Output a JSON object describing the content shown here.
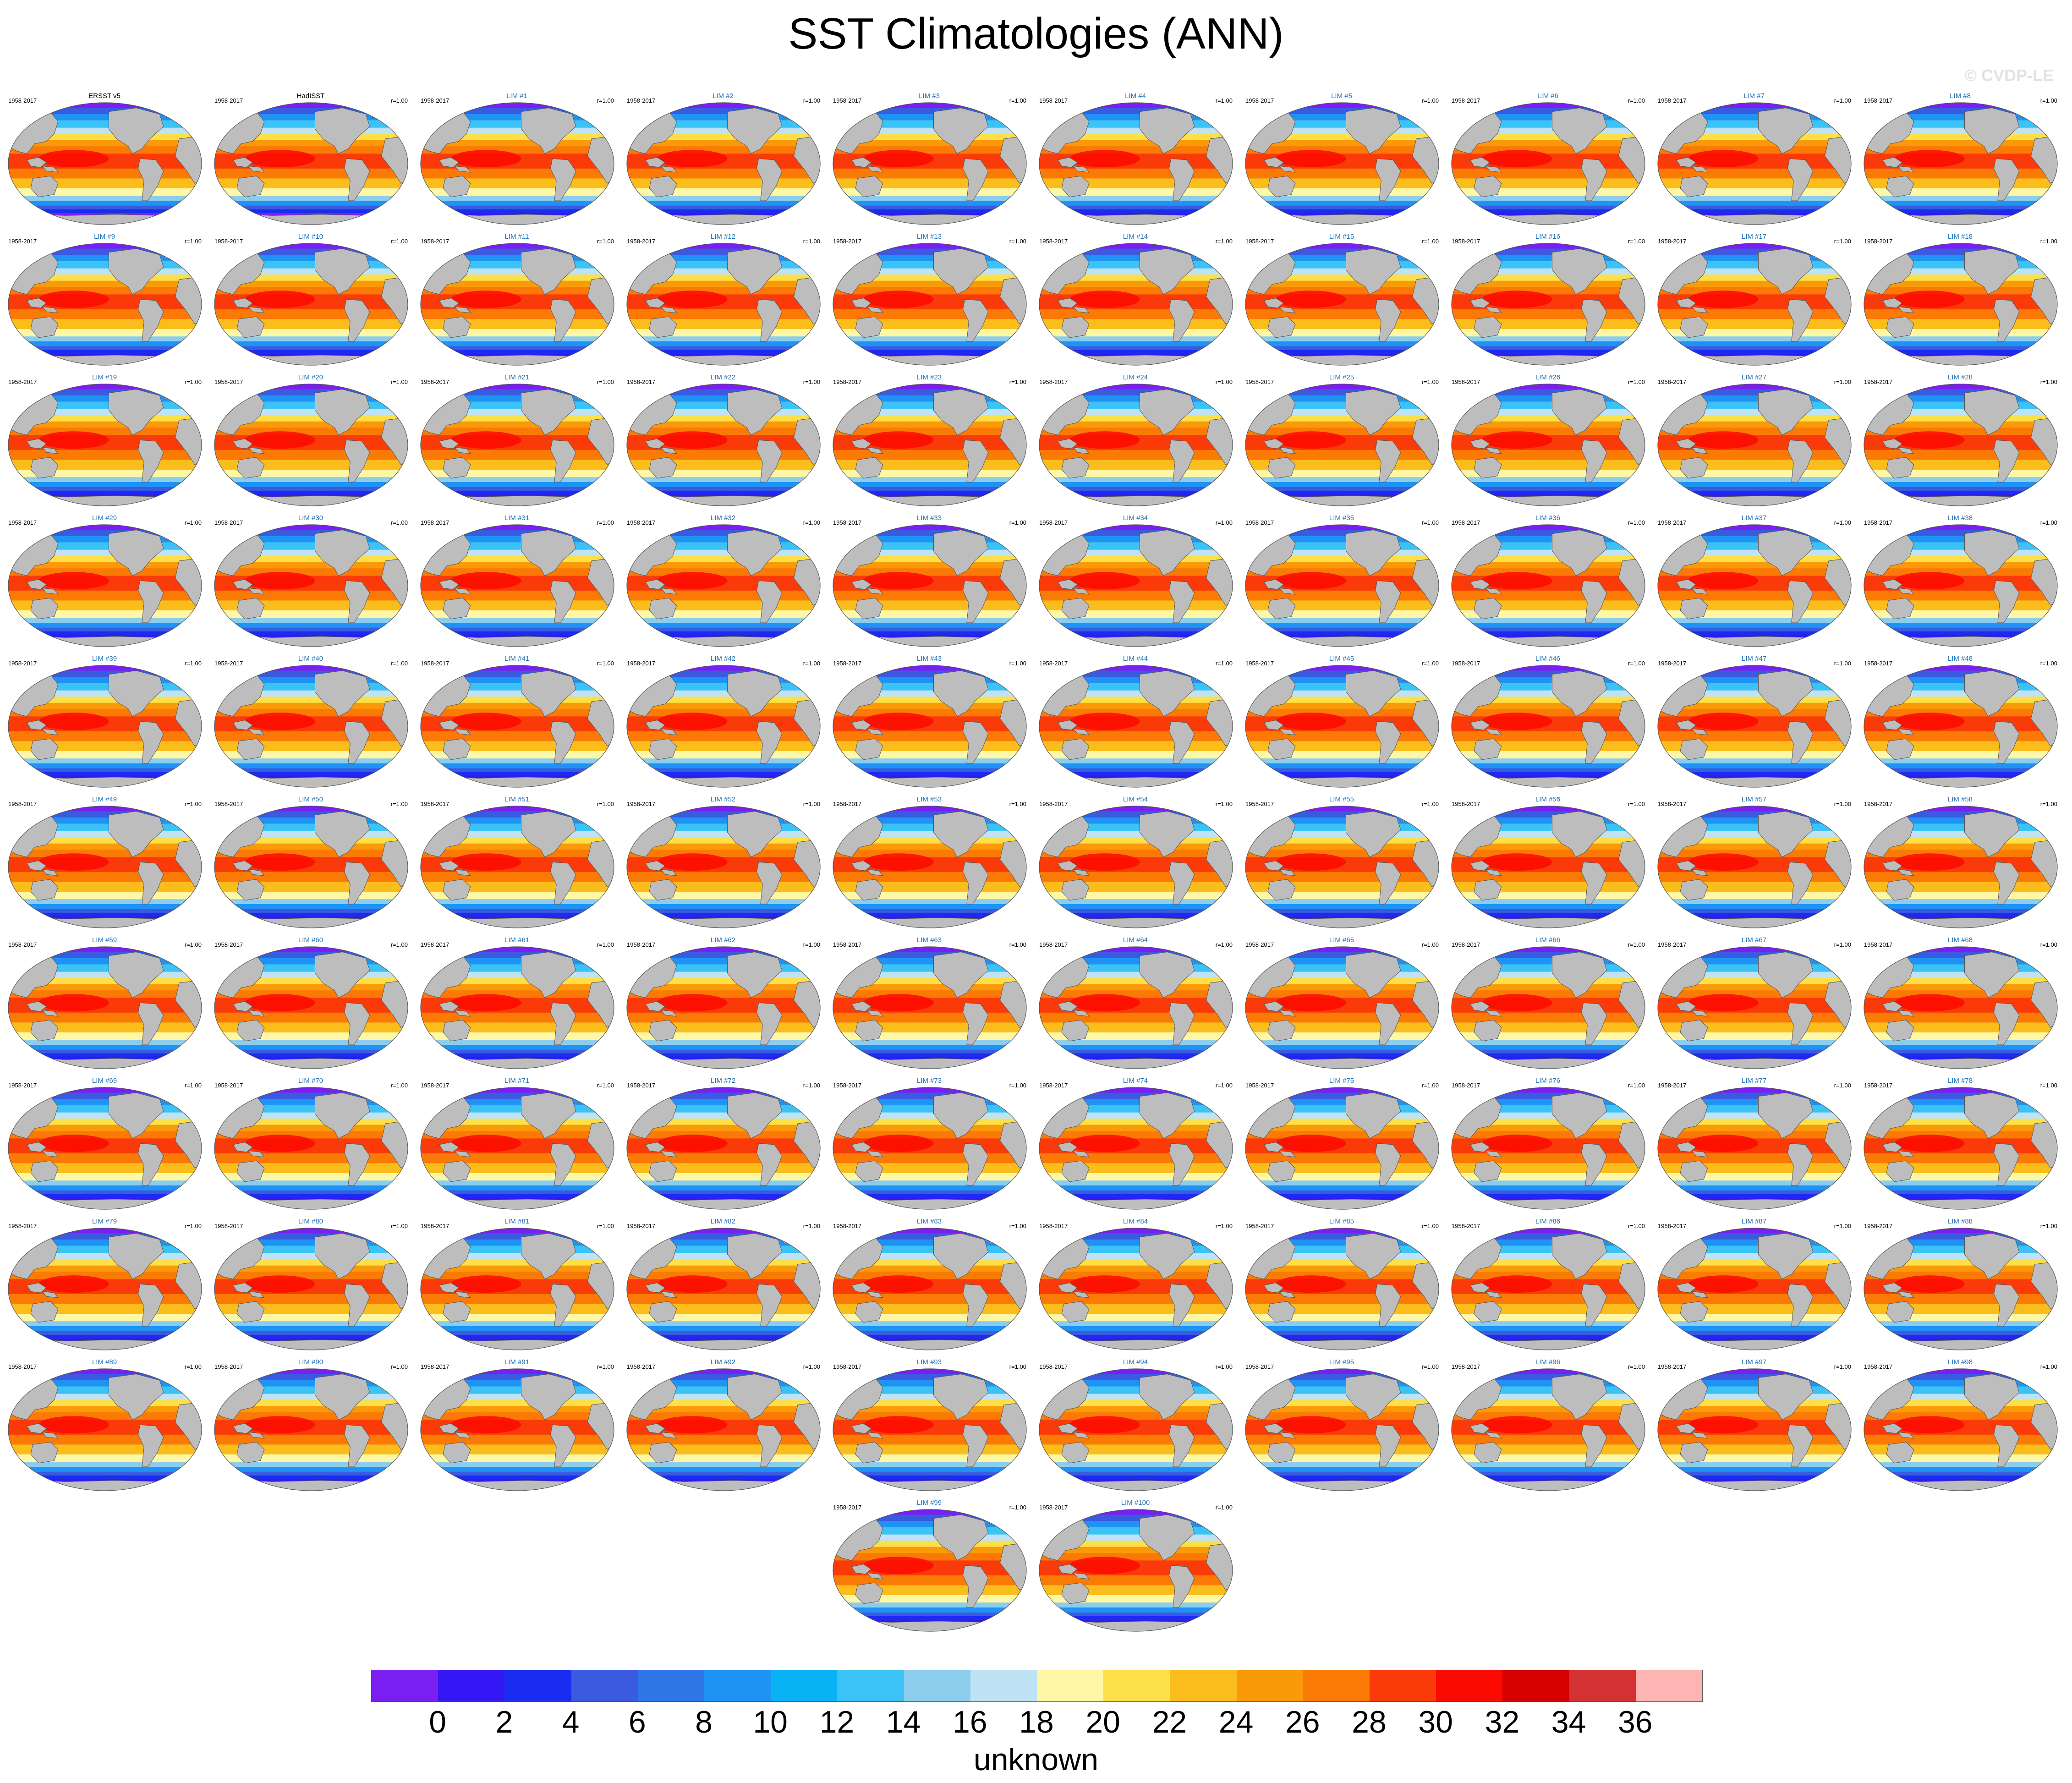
{
  "title": "SST Climatologies (ANN)",
  "watermark": "© CVDP-LE",
  "colorbar_unit": "unknown",
  "chart_data": {
    "type": "heatmap",
    "title": "SST Climatologies (ANN)",
    "map_projection": "robinson",
    "period": "1958-2017",
    "colorbar": {
      "levels": [
        "0",
        "2",
        "4",
        "6",
        "8",
        "10",
        "12",
        "14",
        "16",
        "18",
        "20",
        "22",
        "24",
        "26",
        "28",
        "30",
        "32",
        "34",
        "36"
      ],
      "colors": [
        "#7a1ff2",
        "#3417f5",
        "#1a2cf0",
        "#3a5ae0",
        "#2e75e8",
        "#1f93f5",
        "#08b2f5",
        "#3bc3f7",
        "#8ccdee",
        "#bfe3f5",
        "#fdf7a6",
        "#fde047",
        "#fbbd1c",
        "#fb9a08",
        "#fb7a05",
        "#fa3a08",
        "#fb0a00",
        "#d70000",
        "#d43232",
        "#ffb4b4"
      ]
    },
    "panels": [
      {
        "label": "ERSST v5",
        "left": "1958-2017",
        "right": "",
        "kind": "obs"
      },
      {
        "label": "HadISST",
        "left": "1958-2017",
        "right": "r=1.00",
        "kind": "obs"
      },
      {
        "label": "LIM #1",
        "left": "1958-2017",
        "right": "r=1.00",
        "kind": "model"
      },
      {
        "label": "LIM #2",
        "left": "1958-2017",
        "right": "r=1.00",
        "kind": "model"
      },
      {
        "label": "LIM #3",
        "left": "1958-2017",
        "right": "r=1.00",
        "kind": "model"
      },
      {
        "label": "LIM #4",
        "left": "1958-2017",
        "right": "r=1.00",
        "kind": "model"
      },
      {
        "label": "LIM #5",
        "left": "1958-2017",
        "right": "r=1.00",
        "kind": "model"
      },
      {
        "label": "LIM #6",
        "left": "1958-2017",
        "right": "r=1.00",
        "kind": "model"
      },
      {
        "label": "LIM #7",
        "left": "1958-2017",
        "right": "r=1.00",
        "kind": "model"
      },
      {
        "label": "LIM #8",
        "left": "1958-2017",
        "right": "r=1.00",
        "kind": "model"
      },
      {
        "label": "LIM #9",
        "left": "1958-2017",
        "right": "r=1.00",
        "kind": "model"
      },
      {
        "label": "LIM #10",
        "left": "1958-2017",
        "right": "r=1.00",
        "kind": "model"
      },
      {
        "label": "LIM #11",
        "left": "1958-2017",
        "right": "r=1.00",
        "kind": "model"
      },
      {
        "label": "LIM #12",
        "left": "1958-2017",
        "right": "r=1.00",
        "kind": "model"
      },
      {
        "label": "LIM #13",
        "left": "1958-2017",
        "right": "r=1.00",
        "kind": "model"
      },
      {
        "label": "LIM #14",
        "left": "1958-2017",
        "right": "r=1.00",
        "kind": "model"
      },
      {
        "label": "LIM #15",
        "left": "1958-2017",
        "right": "r=1.00",
        "kind": "model"
      },
      {
        "label": "LIM #16",
        "left": "1958-2017",
        "right": "r=1.00",
        "kind": "model"
      },
      {
        "label": "LIM #17",
        "left": "1958-2017",
        "right": "r=1.00",
        "kind": "model"
      },
      {
        "label": "LIM #18",
        "left": "1958-2017",
        "right": "r=1.00",
        "kind": "model"
      },
      {
        "label": "LIM #19",
        "left": "1958-2017",
        "right": "r=1.00",
        "kind": "model"
      },
      {
        "label": "LIM #20",
        "left": "1958-2017",
        "right": "r=1.00",
        "kind": "model"
      },
      {
        "label": "LIM #21",
        "left": "1958-2017",
        "right": "r=1.00",
        "kind": "model"
      },
      {
        "label": "LIM #22",
        "left": "1958-2017",
        "right": "r=1.00",
        "kind": "model"
      },
      {
        "label": "LIM #23",
        "left": "1958-2017",
        "right": "r=1.00",
        "kind": "model"
      },
      {
        "label": "LIM #24",
        "left": "1958-2017",
        "right": "r=1.00",
        "kind": "model"
      },
      {
        "label": "LIM #25",
        "left": "1958-2017",
        "right": "r=1.00",
        "kind": "model"
      },
      {
        "label": "LIM #26",
        "left": "1958-2017",
        "right": "r=1.00",
        "kind": "model"
      },
      {
        "label": "LIM #27",
        "left": "1958-2017",
        "right": "r=1.00",
        "kind": "model"
      },
      {
        "label": "LIM #28",
        "left": "1958-2017",
        "right": "r=1.00",
        "kind": "model"
      },
      {
        "label": "LIM #29",
        "left": "1958-2017",
        "right": "r=1.00",
        "kind": "model"
      },
      {
        "label": "LIM #30",
        "left": "1958-2017",
        "right": "r=1.00",
        "kind": "model"
      },
      {
        "label": "LIM #31",
        "left": "1958-2017",
        "right": "r=1.00",
        "kind": "model"
      },
      {
        "label": "LIM #32",
        "left": "1958-2017",
        "right": "r=1.00",
        "kind": "model"
      },
      {
        "label": "LIM #33",
        "left": "1958-2017",
        "right": "r=1.00",
        "kind": "model"
      },
      {
        "label": "LIM #34",
        "left": "1958-2017",
        "right": "r=1.00",
        "kind": "model"
      },
      {
        "label": "LIM #35",
        "left": "1958-2017",
        "right": "r=1.00",
        "kind": "model"
      },
      {
        "label": "LIM #36",
        "left": "1958-2017",
        "right": "r=1.00",
        "kind": "model"
      },
      {
        "label": "LIM #37",
        "left": "1958-2017",
        "right": "r=1.00",
        "kind": "model"
      },
      {
        "label": "LIM #38",
        "left": "1958-2017",
        "right": "r=1.00",
        "kind": "model"
      },
      {
        "label": "LIM #39",
        "left": "1958-2017",
        "right": "r=1.00",
        "kind": "model"
      },
      {
        "label": "LIM #40",
        "left": "1958-2017",
        "right": "r=1.00",
        "kind": "model"
      },
      {
        "label": "LIM #41",
        "left": "1958-2017",
        "right": "r=1.00",
        "kind": "model"
      },
      {
        "label": "LIM #42",
        "left": "1958-2017",
        "right": "r=1.00",
        "kind": "model"
      },
      {
        "label": "LIM #43",
        "left": "1958-2017",
        "right": "r=1.00",
        "kind": "model"
      },
      {
        "label": "LIM #44",
        "left": "1958-2017",
        "right": "r=1.00",
        "kind": "model"
      },
      {
        "label": "LIM #45",
        "left": "1958-2017",
        "right": "r=1.00",
        "kind": "model"
      },
      {
        "label": "LIM #46",
        "left": "1958-2017",
        "right": "r=1.00",
        "kind": "model"
      },
      {
        "label": "LIM #47",
        "left": "1958-2017",
        "right": "r=1.00",
        "kind": "model"
      },
      {
        "label": "LIM #48",
        "left": "1958-2017",
        "right": "r=1.00",
        "kind": "model"
      },
      {
        "label": "LIM #49",
        "left": "1958-2017",
        "right": "r=1.00",
        "kind": "model"
      },
      {
        "label": "LIM #50",
        "left": "1958-2017",
        "right": "r=1.00",
        "kind": "model"
      },
      {
        "label": "LIM #51",
        "left": "1958-2017",
        "right": "r=1.00",
        "kind": "model"
      },
      {
        "label": "LIM #52",
        "left": "1958-2017",
        "right": "r=1.00",
        "kind": "model"
      },
      {
        "label": "LIM #53",
        "left": "1958-2017",
        "right": "r=1.00",
        "kind": "model"
      },
      {
        "label": "LIM #54",
        "left": "1958-2017",
        "right": "r=1.00",
        "kind": "model"
      },
      {
        "label": "LIM #55",
        "left": "1958-2017",
        "right": "r=1.00",
        "kind": "model"
      },
      {
        "label": "LIM #56",
        "left": "1958-2017",
        "right": "r=1.00",
        "kind": "model"
      },
      {
        "label": "LIM #57",
        "left": "1958-2017",
        "right": "r=1.00",
        "kind": "model"
      },
      {
        "label": "LIM #58",
        "left": "1958-2017",
        "right": "r=1.00",
        "kind": "model"
      },
      {
        "label": "LIM #59",
        "left": "1958-2017",
        "right": "r=1.00",
        "kind": "model"
      },
      {
        "label": "LIM #60",
        "left": "1958-2017",
        "right": "r=1.00",
        "kind": "model"
      },
      {
        "label": "LIM #61",
        "left": "1958-2017",
        "right": "r=1.00",
        "kind": "model"
      },
      {
        "label": "LIM #62",
        "left": "1958-2017",
        "right": "r=1.00",
        "kind": "model"
      },
      {
        "label": "LIM #63",
        "left": "1958-2017",
        "right": "r=1.00",
        "kind": "model"
      },
      {
        "label": "LIM #64",
        "left": "1958-2017",
        "right": "r=1.00",
        "kind": "model"
      },
      {
        "label": "LIM #65",
        "left": "1958-2017",
        "right": "r=1.00",
        "kind": "model"
      },
      {
        "label": "LIM #66",
        "left": "1958-2017",
        "right": "r=1.00",
        "kind": "model"
      },
      {
        "label": "LIM #67",
        "left": "1958-2017",
        "right": "r=1.00",
        "kind": "model"
      },
      {
        "label": "LIM #68",
        "left": "1958-2017",
        "right": "r=1.00",
        "kind": "model"
      },
      {
        "label": "LIM #69",
        "left": "1958-2017",
        "right": "r=1.00",
        "kind": "model"
      },
      {
        "label": "LIM #70",
        "left": "1958-2017",
        "right": "r=1.00",
        "kind": "model"
      },
      {
        "label": "LIM #71",
        "left": "1958-2017",
        "right": "r=1.00",
        "kind": "model"
      },
      {
        "label": "LIM #72",
        "left": "1958-2017",
        "right": "r=1.00",
        "kind": "model"
      },
      {
        "label": "LIM #73",
        "left": "1958-2017",
        "right": "r=1.00",
        "kind": "model"
      },
      {
        "label": "LIM #74",
        "left": "1958-2017",
        "right": "r=1.00",
        "kind": "model"
      },
      {
        "label": "LIM #75",
        "left": "1958-2017",
        "right": "r=1.00",
        "kind": "model"
      },
      {
        "label": "LIM #76",
        "left": "1958-2017",
        "right": "r=1.00",
        "kind": "model"
      },
      {
        "label": "LIM #77",
        "left": "1958-2017",
        "right": "r=1.00",
        "kind": "model"
      },
      {
        "label": "LIM #78",
        "left": "1958-2017",
        "right": "r=1.00",
        "kind": "model"
      },
      {
        "label": "LIM #79",
        "left": "1958-2017",
        "right": "r=1.00",
        "kind": "model"
      },
      {
        "label": "LIM #80",
        "left": "1958-2017",
        "right": "r=1.00",
        "kind": "model"
      },
      {
        "label": "LIM #81",
        "left": "1958-2017",
        "right": "r=1.00",
        "kind": "model"
      },
      {
        "label": "LIM #82",
        "left": "1958-2017",
        "right": "r=1.00",
        "kind": "model"
      },
      {
        "label": "LIM #83",
        "left": "1958-2017",
        "right": "r=1.00",
        "kind": "model"
      },
      {
        "label": "LIM #84",
        "left": "1958-2017",
        "right": "r=1.00",
        "kind": "model"
      },
      {
        "label": "LIM #85",
        "left": "1958-2017",
        "right": "r=1.00",
        "kind": "model"
      },
      {
        "label": "LIM #86",
        "left": "1958-2017",
        "right": "r=1.00",
        "kind": "model"
      },
      {
        "label": "LIM #87",
        "left": "1958-2017",
        "right": "r=1.00",
        "kind": "model"
      },
      {
        "label": "LIM #88",
        "left": "1958-2017",
        "right": "r=1.00",
        "kind": "model"
      },
      {
        "label": "LIM #89",
        "left": "1958-2017",
        "right": "r=1.00",
        "kind": "model"
      },
      {
        "label": "LIM #90",
        "left": "1958-2017",
        "right": "r=1.00",
        "kind": "model"
      },
      {
        "label": "LIM #91",
        "left": "1958-2017",
        "right": "r=1.00",
        "kind": "model"
      },
      {
        "label": "LIM #92",
        "left": "1958-2017",
        "right": "r=1.00",
        "kind": "model"
      },
      {
        "label": "LIM #93",
        "left": "1958-2017",
        "right": "r=1.00",
        "kind": "model"
      },
      {
        "label": "LIM #94",
        "left": "1958-2017",
        "right": "r=1.00",
        "kind": "model"
      },
      {
        "label": "LIM #95",
        "left": "1958-2017",
        "right": "r=1.00",
        "kind": "model"
      },
      {
        "label": "LIM #96",
        "left": "1958-2017",
        "right": "r=1.00",
        "kind": "model"
      },
      {
        "label": "LIM #97",
        "left": "1958-2017",
        "right": "r=1.00",
        "kind": "model"
      },
      {
        "label": "LIM #98",
        "left": "1958-2017",
        "right": "r=1.00",
        "kind": "model"
      },
      {
        "label": "LIM #99",
        "left": "1958-2017",
        "right": "r=1.00",
        "kind": "model"
      },
      {
        "label": "LIM #100",
        "left": "1958-2017",
        "right": "r=1.00",
        "kind": "model"
      }
    ]
  }
}
